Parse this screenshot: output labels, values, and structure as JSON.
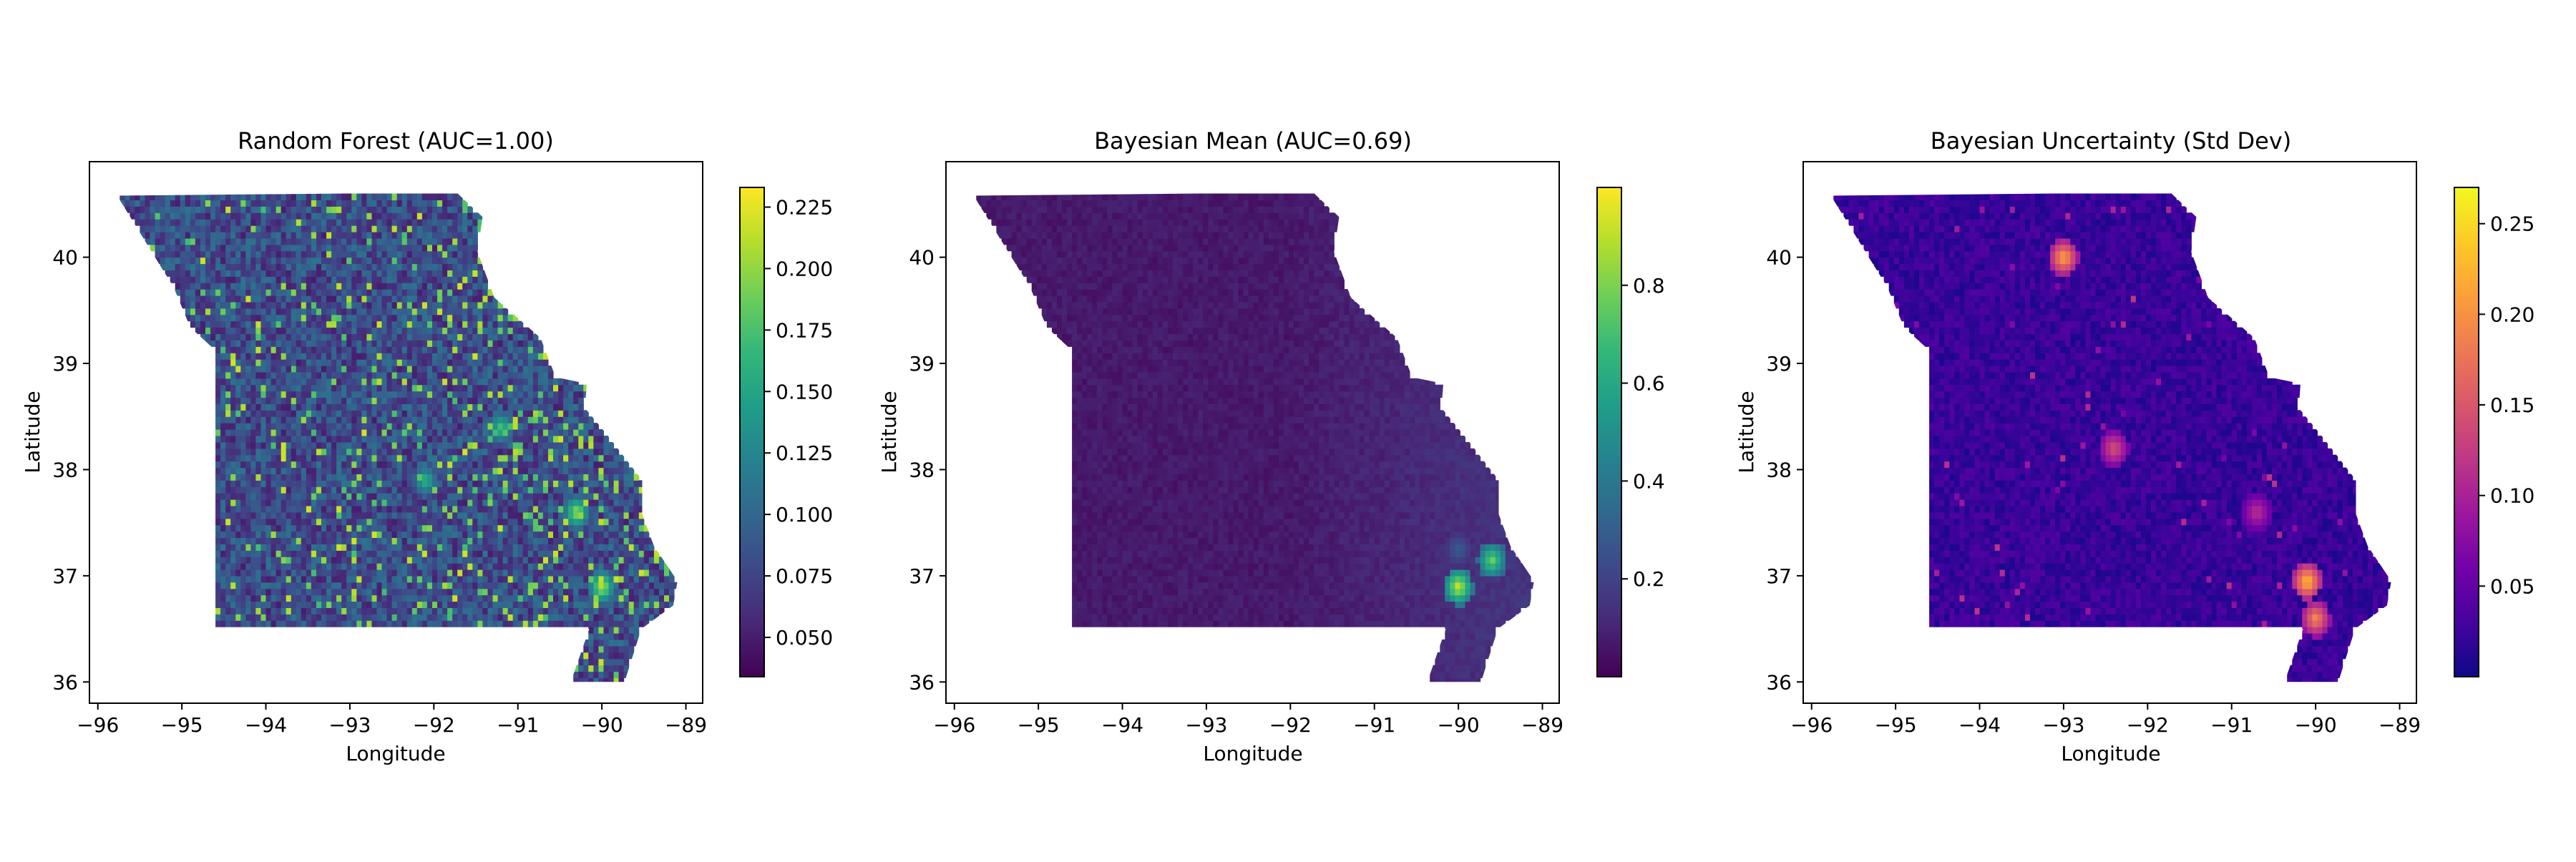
{
  "chart_data": [
    {
      "type": "heatmap",
      "title": "Random Forest (AUC=1.00)",
      "xlabel": "Longitude",
      "ylabel": "Latitude",
      "x_ticks": [
        "−96",
        "−95",
        "−94",
        "−93",
        "−92",
        "−91",
        "−90",
        "−89"
      ],
      "y_ticks": [
        "36",
        "37",
        "38",
        "39",
        "40"
      ],
      "xlim": [
        -96.1,
        -88.8
      ],
      "ylim": [
        35.8,
        40.9
      ],
      "colormap": "viridis",
      "colorbar_range": [
        0.034,
        0.233
      ],
      "colorbar_ticks": [
        "0.050",
        "0.075",
        "0.100",
        "0.125",
        "0.150",
        "0.175",
        "0.200",
        "0.225"
      ],
      "colorbar_tick_values": [
        0.05,
        0.075,
        0.1,
        0.125,
        0.15,
        0.175,
        0.2,
        0.225
      ],
      "typical_value": 0.085,
      "hotspots": [
        {
          "lon": -90.3,
          "lat": 37.6,
          "value": 0.21
        },
        {
          "lon": -90.0,
          "lat": 36.9,
          "value": 0.22
        },
        {
          "lon": -91.2,
          "lat": 38.4,
          "value": 0.18
        },
        {
          "lon": -92.1,
          "lat": 37.9,
          "value": 0.17
        }
      ]
    },
    {
      "type": "heatmap",
      "title": "Bayesian Mean (AUC=0.69)",
      "xlabel": "Longitude",
      "ylabel": "Latitude",
      "x_ticks": [
        "−96",
        "−95",
        "−94",
        "−93",
        "−92",
        "−91",
        "−90",
        "−89"
      ],
      "y_ticks": [
        "36",
        "37",
        "38",
        "39",
        "40"
      ],
      "xlim": [
        -96.1,
        -88.8
      ],
      "ylim": [
        35.8,
        40.9
      ],
      "colormap": "viridis",
      "colorbar_range": [
        0.0,
        1.0
      ],
      "colorbar_ticks": [
        "0.2",
        "0.4",
        "0.6",
        "0.8"
      ],
      "colorbar_tick_values": [
        0.2,
        0.4,
        0.6,
        0.8
      ],
      "typical_value": 0.06,
      "hotspots": [
        {
          "lon": -90.0,
          "lat": 36.9,
          "value": 0.95
        },
        {
          "lon": -89.6,
          "lat": 37.15,
          "value": 0.8
        },
        {
          "lon": -90.0,
          "lat": 37.25,
          "value": 0.3
        }
      ]
    },
    {
      "type": "heatmap",
      "title": "Bayesian Uncertainty (Std Dev)",
      "xlabel": "Longitude",
      "ylabel": "Latitude",
      "x_ticks": [
        "−96",
        "−95",
        "−94",
        "−93",
        "−92",
        "−91",
        "−90",
        "−89"
      ],
      "y_ticks": [
        "36",
        "37",
        "38",
        "39",
        "40"
      ],
      "xlim": [
        -96.1,
        -88.8
      ],
      "ylim": [
        35.8,
        40.9
      ],
      "colormap": "plasma",
      "colorbar_range": [
        0.0,
        0.27
      ],
      "colorbar_ticks": [
        "0.05",
        "0.10",
        "0.15",
        "0.20",
        "0.25"
      ],
      "colorbar_tick_values": [
        0.05,
        0.1,
        0.15,
        0.2,
        0.25
      ],
      "typical_value": 0.02,
      "hotspots": [
        {
          "lon": -93.0,
          "lat": 40.0,
          "value": 0.22
        },
        {
          "lon": -90.1,
          "lat": 36.95,
          "value": 0.24
        },
        {
          "lon": -90.0,
          "lat": 36.6,
          "value": 0.2
        },
        {
          "lon": -90.7,
          "lat": 37.6,
          "value": 0.12
        },
        {
          "lon": -92.4,
          "lat": 38.2,
          "value": 0.15
        }
      ]
    }
  ],
  "colors": {
    "viridis": [
      "#440154",
      "#482878",
      "#3e4989",
      "#31688e",
      "#26828e",
      "#1f9e89",
      "#35b779",
      "#6ece58",
      "#b5de2b",
      "#fde725"
    ],
    "plasma": [
      "#0d0887",
      "#46039f",
      "#7201a8",
      "#9c179e",
      "#bd3786",
      "#d8576b",
      "#ed7953",
      "#fb9f3a",
      "#fdca26",
      "#f0f921"
    ]
  }
}
